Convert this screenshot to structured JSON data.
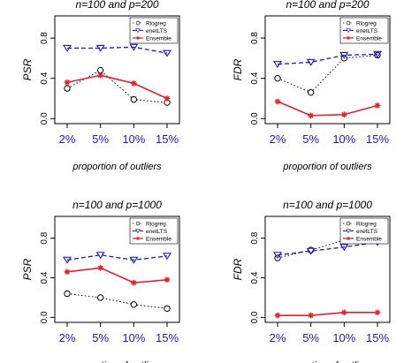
{
  "colors": {
    "Rlogreg": "#000000",
    "enetLTS": "#1a1acc",
    "Ensemble": "#e8202a",
    "tick_text": "#1a1acc"
  },
  "chart_data": [
    {
      "type": "line",
      "title": "n=100 and p=200",
      "xlabel": "proportion of outliers",
      "ylabel": "PSR",
      "categories": [
        "2%",
        "5%",
        "10%",
        "15%"
      ],
      "yticks": [
        "0.0",
        "0.4",
        "0.8"
      ],
      "ylim": [
        -0.05,
        1.02
      ],
      "legend": "top-right",
      "series": [
        {
          "name": "Rlogreg",
          "values": [
            0.3,
            0.48,
            0.19,
            0.16
          ]
        },
        {
          "name": "enetLTS",
          "values": [
            0.7,
            0.7,
            0.71,
            0.65
          ]
        },
        {
          "name": "Ensemble",
          "values": [
            0.36,
            0.43,
            0.35,
            0.2
          ]
        }
      ]
    },
    {
      "type": "line",
      "title": "n=100 and p=200",
      "xlabel": "proportion of outliers",
      "ylabel": "FDR",
      "categories": [
        "2%",
        "5%",
        "10%",
        "15%"
      ],
      "yticks": [
        "0.0",
        "0.4",
        "0.8"
      ],
      "ylim": [
        -0.05,
        1.02
      ],
      "legend": "top-right",
      "series": [
        {
          "name": "Rlogreg",
          "values": [
            0.4,
            0.26,
            0.6,
            0.63
          ]
        },
        {
          "name": "enetLTS",
          "values": [
            0.54,
            0.56,
            0.63,
            0.64
          ]
        },
        {
          "name": "Ensemble",
          "values": [
            0.17,
            0.03,
            0.04,
            0.13
          ]
        }
      ]
    },
    {
      "type": "line",
      "title": "n=100 and p=1000",
      "xlabel": "proportion of outliers",
      "ylabel": "PSR",
      "categories": [
        "2%",
        "5%",
        "10%",
        "15%"
      ],
      "yticks": [
        "0.0",
        "0.4",
        "0.8"
      ],
      "ylim": [
        -0.05,
        1.02
      ],
      "legend": "top-right",
      "series": [
        {
          "name": "Rlogreg",
          "values": [
            0.24,
            0.2,
            0.13,
            0.09
          ]
        },
        {
          "name": "enetLTS",
          "values": [
            0.58,
            0.63,
            0.58,
            0.62
          ]
        },
        {
          "name": "Ensemble",
          "values": [
            0.46,
            0.5,
            0.35,
            0.38
          ]
        }
      ]
    },
    {
      "type": "line",
      "title": "n=100 and p=1000",
      "xlabel": "proportion of outliers",
      "ylabel": "FDR",
      "categories": [
        "2%",
        "5%",
        "10%",
        "15%"
      ],
      "yticks": [
        "0.0",
        "0.4",
        "0.8"
      ],
      "ylim": [
        -0.05,
        1.02
      ],
      "legend": "top-right",
      "series": [
        {
          "name": "Rlogreg",
          "values": [
            0.6,
            0.68,
            0.78,
            0.84
          ]
        },
        {
          "name": "enetLTS",
          "values": [
            0.63,
            0.67,
            0.71,
            0.76
          ]
        },
        {
          "name": "Ensemble",
          "values": [
            0.02,
            0.02,
            0.05,
            0.05
          ]
        }
      ]
    }
  ]
}
